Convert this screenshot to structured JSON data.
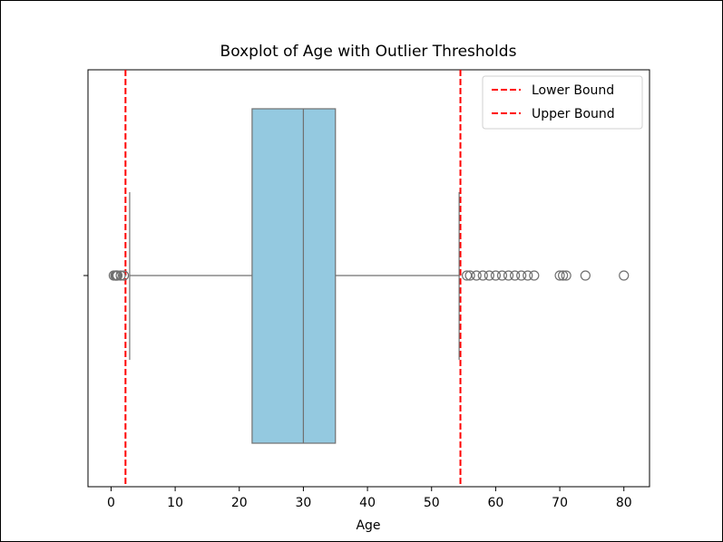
{
  "chart_data": {
    "type": "boxplot",
    "title": "Boxplot of Age with Outlier Thresholds",
    "xlabel": "Age",
    "ylabel": "",
    "xlim": [
      -3.6,
      84.0
    ],
    "x_ticks": [
      0,
      10,
      20,
      30,
      40,
      50,
      60,
      70,
      80
    ],
    "grid": false,
    "box": {
      "whisker_low": 2.9,
      "q1": 22.0,
      "median": 30.0,
      "q3": 35.0,
      "whisker_high": 54.3,
      "fill": "#94c9e0",
      "edge": "#707070"
    },
    "outliers": [
      0.42,
      0.67,
      0.75,
      0.83,
      0.92,
      1.0,
      1.5,
      2.0,
      55.5,
      56.0,
      57.0,
      58.0,
      59.0,
      60.0,
      61.0,
      62.0,
      63.0,
      64.0,
      65.0,
      66.0,
      70.0,
      70.5,
      71.0,
      74.0,
      80.0
    ],
    "thresholds": [
      {
        "name": "Lower Bound",
        "value": 2.25,
        "color": "#ff0000",
        "style": "dashed"
      },
      {
        "name": "Upper Bound",
        "value": 54.5,
        "color": "#ff0000",
        "style": "dashed"
      }
    ],
    "legend_position": "top-right"
  }
}
